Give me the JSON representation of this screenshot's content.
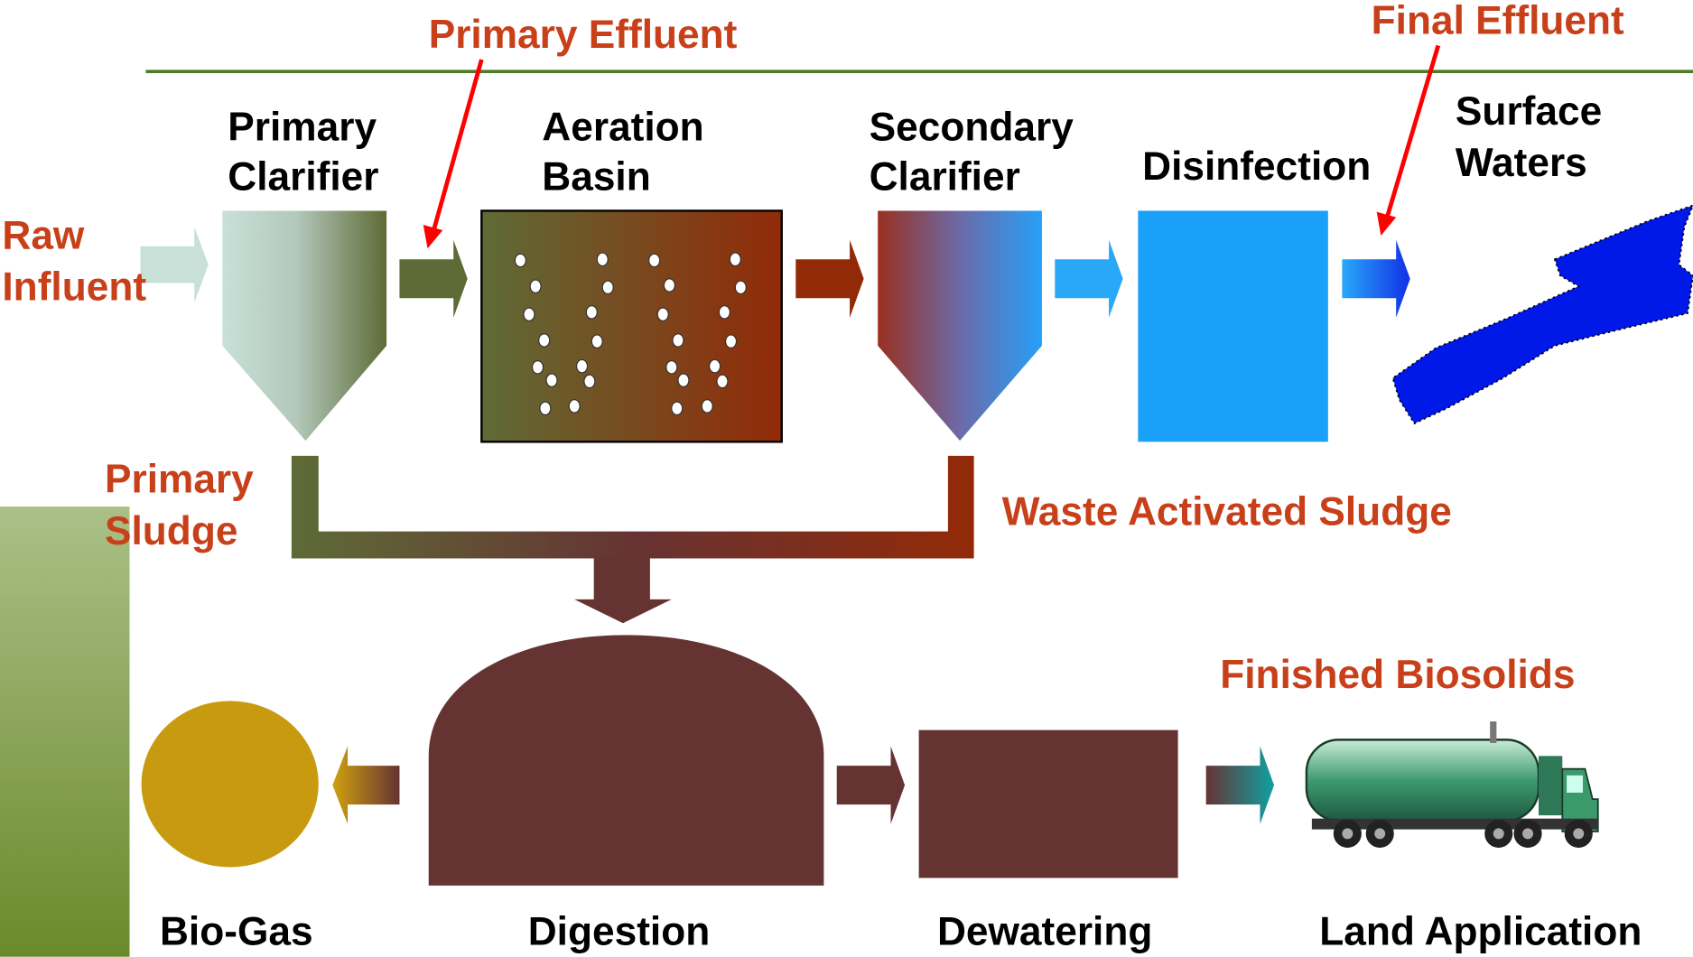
{
  "flow_labels": {
    "primary_effluent": "Primary Effluent",
    "final_effluent": "Final Effluent",
    "raw_influent": [
      "Raw",
      "Influent"
    ],
    "primary_sludge": [
      "Primary",
      "Sludge"
    ],
    "waste_activated_sludge": "Waste Activated Sludge",
    "finished_biosolids": "Finished Biosolids"
  },
  "units": {
    "primary_clarifier": [
      "Primary",
      "Clarifier"
    ],
    "aeration_basin": [
      "Aeration",
      "Basin"
    ],
    "secondary_clarifier": [
      "Secondary",
      "Clarifier"
    ],
    "disinfection": "Disinfection",
    "surface_waters": [
      "Surface",
      "Waters"
    ],
    "bio_gas": "Bio-Gas",
    "digestion": "Digestion",
    "dewatering": "Dewatering",
    "land_application": "Land Application"
  }
}
